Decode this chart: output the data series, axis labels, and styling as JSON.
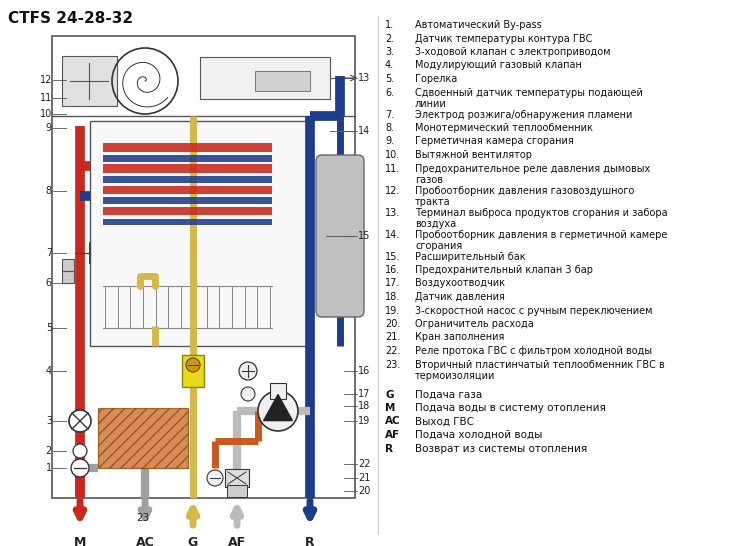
{
  "title": "CTFS 24-28-32",
  "bg_color": "#ffffff",
  "legend_items": [
    {
      "num": "1.",
      "text": "Автоматический By-pass"
    },
    {
      "num": "2.",
      "text": "Датчик температуры контура ГВС"
    },
    {
      "num": "3.",
      "text": "3-ходовой клапан с электроприводом"
    },
    {
      "num": "4.",
      "text": "Модулирующий газовый клапан"
    },
    {
      "num": "5.",
      "text": "Горелка"
    },
    {
      "num": "6.",
      "text": "Сдвоенный датчик температуры подающей\nлинии"
    },
    {
      "num": "7.",
      "text": "Электрод розжига/обнаружения пламени"
    },
    {
      "num": "8.",
      "text": "Монотермический теплообменник"
    },
    {
      "num": "9.",
      "text": "Герметичная камера сгорания"
    },
    {
      "num": "10.",
      "text": "Вытяжной вентилятор"
    },
    {
      "num": "11.",
      "text": "Предохранительное реле давления дымовых\nгазов"
    },
    {
      "num": "12.",
      "text": "Пробоотборник давления газовоздушного\nтракта"
    },
    {
      "num": "13.",
      "text": "Терминал выброса продуктов сгорания и забора\nвоздуха"
    },
    {
      "num": "14.",
      "text": "Пробоотборник давления в герметичной камере\nсгорания"
    },
    {
      "num": "15.",
      "text": "Расширительный бак"
    },
    {
      "num": "16.",
      "text": "Предохранительный клапан 3 бар"
    },
    {
      "num": "17.",
      "text": "Воздухоотводчик"
    },
    {
      "num": "18.",
      "text": "Датчик давления"
    },
    {
      "num": "19.",
      "text": "3-скоростной насос с ручным переключением"
    },
    {
      "num": "20.",
      "text": "Ограничитель расхода"
    },
    {
      "num": "21.",
      "text": "Кран заполнения"
    },
    {
      "num": "22.",
      "text": "Реле протока ГВС с фильтром холодной воды"
    },
    {
      "num": "23.",
      "text": "Вторичный пластинчатый теплообменник ГВС в\nтермоизоляции"
    }
  ],
  "legend_bottom": [
    {
      "key": "G",
      "text": "Подача газа"
    },
    {
      "key": "M",
      "text": "Подача воды в систему отопления"
    },
    {
      "key": "AC",
      "text": "Выход ГВС"
    },
    {
      "key": "AF",
      "text": "Подача холодной воды"
    },
    {
      "key": "R",
      "text": "Возврат из системы отопления"
    }
  ],
  "colors": {
    "red": "#c8281e",
    "blue": "#1e3c8c",
    "yellow": "#d4b84a",
    "orange": "#c85a1e",
    "gray_pipe": "#a0a0a0",
    "dark": "#333333",
    "mid": "#666666",
    "light": "#cccccc",
    "bg": "#ffffff",
    "hx_bg": "#f0f0f0",
    "tank_fill": "#b8b8b8"
  }
}
